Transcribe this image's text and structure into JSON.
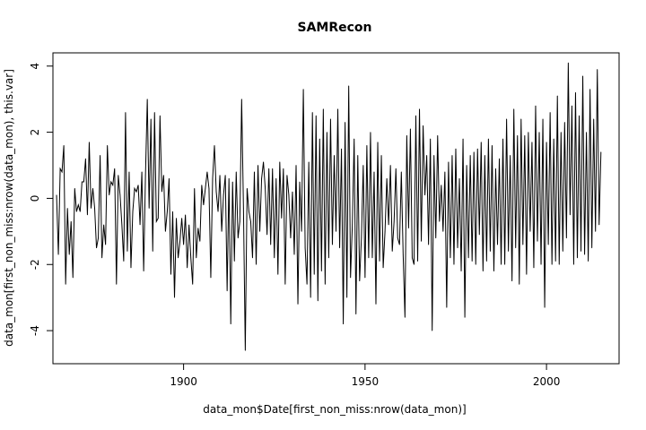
{
  "chart_data": {
    "type": "line",
    "title": "SAMRecon",
    "xlabel": "data_mon$Date[first_non_miss:nrow(data_mon)]",
    "ylabel": "data_mon[first_non_miss:nrow(data_mon), this.var]",
    "xlim": [
      1864,
      2020
    ],
    "ylim": [
      -5,
      4.4
    ],
    "x_ticks": [
      1900,
      1950,
      2000
    ],
    "y_ticks": [
      -4,
      -2,
      0,
      2,
      4
    ],
    "x_tick_labels": [
      "1900",
      "1950",
      "2000"
    ],
    "y_tick_labels": [
      "-4",
      "-2",
      "0",
      "2",
      "4"
    ],
    "grid": false,
    "legend": "none",
    "series": [
      {
        "color": "#000000",
        "line_width": 1,
        "x_start": 1865,
        "x_step": 0.5,
        "values": [
          0.1,
          -1.7,
          0.9,
          0.8,
          1.6,
          -2.6,
          -0.3,
          -1.7,
          -0.7,
          -2.4,
          0.3,
          -0.4,
          -0.2,
          -0.4,
          0.5,
          0.5,
          1.2,
          -0.5,
          1.7,
          -0.3,
          0.3,
          -0.3,
          -1.5,
          -1.2,
          1.3,
          -1.8,
          -0.8,
          -1.4,
          1.6,
          0.1,
          0.5,
          0.4,
          0.9,
          -2.6,
          0.7,
          0.1,
          -0.8,
          -1.9,
          2.6,
          -1.6,
          0.8,
          -2.1,
          -0.4,
          0.3,
          0.2,
          0.4,
          -0.8,
          0.8,
          -2.2,
          0.7,
          3.0,
          -0.3,
          2.4,
          -1.6,
          2.6,
          -0.7,
          -0.6,
          2.5,
          0.2,
          0.7,
          -1.0,
          -0.4,
          0.6,
          -2.3,
          -0.4,
          -3.0,
          -0.6,
          -1.8,
          -1.3,
          -0.6,
          -1.4,
          -0.5,
          -2.1,
          -0.8,
          -1.8,
          -2.6,
          0.3,
          -1.8,
          -0.9,
          -1.3,
          0.4,
          -0.2,
          0.3,
          0.8,
          0.3,
          -2.4,
          0.6,
          1.6,
          0.2,
          -0.4,
          0.7,
          -1.0,
          0.1,
          0.7,
          -2.8,
          0.6,
          -3.8,
          0.5,
          -1.9,
          0.8,
          -1.2,
          -0.7,
          3.0,
          -0.3,
          -4.6,
          0.3,
          -0.4,
          -0.7,
          -1.8,
          0.8,
          -2.0,
          1.0,
          -1.0,
          0.6,
          1.1,
          0.3,
          -1.1,
          0.9,
          -1.4,
          0.9,
          -1.8,
          0.6,
          -2.3,
          1.1,
          -0.6,
          0.9,
          -2.6,
          0.7,
          0.1,
          -1.2,
          0.2,
          -1.7,
          1.0,
          -3.2,
          0.5,
          -1.0,
          3.3,
          -1.5,
          -2.6,
          1.1,
          -3.0,
          2.6,
          -2.3,
          2.5,
          -3.1,
          1.8,
          -2.2,
          2.7,
          -2.6,
          2.0,
          -1.8,
          2.4,
          -1.4,
          1.3,
          -1.0,
          2.7,
          -1.5,
          1.5,
          -3.8,
          2.3,
          -3.0,
          3.4,
          -2.4,
          -0.8,
          1.8,
          -3.5,
          1.3,
          -2.5,
          -1.2,
          1.0,
          -2.4,
          1.6,
          -1.8,
          2.0,
          -1.8,
          0.8,
          -3.2,
          1.7,
          -1.9,
          1.3,
          -2.1,
          -1.0,
          0.6,
          -0.8,
          1.0,
          -1.6,
          -0.7,
          0.9,
          -1.2,
          -1.4,
          0.8,
          -1.7,
          -3.6,
          1.9,
          -0.9,
          2.1,
          -1.8,
          -2.0,
          2.5,
          -1.9,
          2.7,
          -1.3,
          2.2,
          0.1,
          1.3,
          -1.4,
          1.8,
          -4.0,
          1.3,
          -1.2,
          1.9,
          -0.7,
          0.4,
          -1.0,
          0.8,
          -3.3,
          1.1,
          -1.8,
          1.3,
          -2.0,
          1.5,
          -1.5,
          0.6,
          -2.2,
          1.8,
          -3.6,
          1.0,
          -1.8,
          1.3,
          -1.9,
          1.4,
          -2.0,
          1.5,
          -1.1,
          1.7,
          -2.2,
          1.3,
          -1.9,
          1.8,
          -1.6,
          1.6,
          -2.2,
          0.9,
          -1.4,
          1.2,
          -2.0,
          1.8,
          -2.0,
          2.4,
          -1.6,
          1.3,
          -2.5,
          2.7,
          -1.5,
          1.9,
          -2.6,
          2.4,
          -1.4,
          1.9,
          -2.3,
          2.0,
          -1.0,
          1.7,
          -2.1,
          2.8,
          -1.3,
          2.0,
          -2.0,
          2.4,
          -3.3,
          1.7,
          -1.4,
          2.6,
          -2.0,
          1.8,
          -1.9,
          3.1,
          -2.0,
          2.0,
          -1.6,
          2.3,
          -1.2,
          4.1,
          -0.5,
          2.8,
          -2.0,
          3.2,
          -1.8,
          2.5,
          -1.6,
          3.7,
          -1.7,
          2.0,
          -1.9,
          3.3,
          -1.5,
          2.4,
          -1.0,
          3.9,
          -0.8,
          1.4
        ]
      }
    ]
  }
}
